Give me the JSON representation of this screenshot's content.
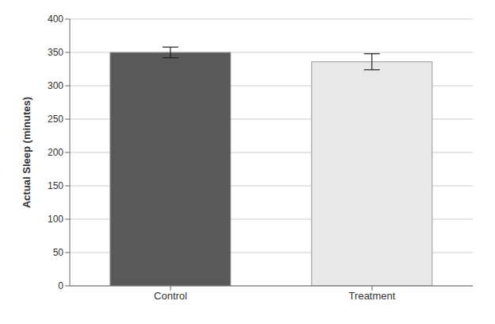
{
  "chart_data": {
    "type": "bar",
    "categories": [
      "Control",
      "Treatment"
    ],
    "values": [
      350,
      336
    ],
    "errors": [
      8,
      12
    ],
    "colors": [
      "#595959",
      "#e8e8e8"
    ],
    "ylabel": "Actual Sleep (minutes)",
    "ylim": [
      0,
      400
    ],
    "yticks": [
      0,
      50,
      100,
      150,
      200,
      250,
      300,
      350,
      400
    ],
    "grid": true
  }
}
